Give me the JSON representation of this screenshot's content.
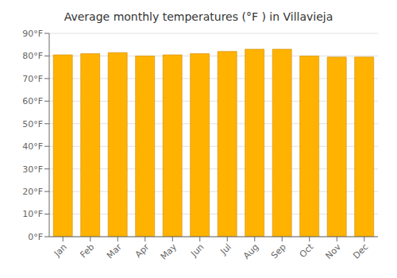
{
  "chart_data": {
    "type": "bar",
    "title": "Average monthly temperatures (°F ) in Villavieja",
    "categories": [
      "Jan",
      "Feb",
      "Mar",
      "Apr",
      "May",
      "Jun",
      "Jul",
      "Aug",
      "Sep",
      "Oct",
      "Nov",
      "Dec"
    ],
    "values": [
      80.5,
      81.0,
      81.5,
      80.0,
      80.5,
      81.0,
      82.0,
      83.0,
      83.0,
      80.0,
      79.5,
      79.5
    ],
    "color": "#FFB300",
    "ylim": [
      0,
      90
    ],
    "yticks": [
      {
        "value": 0,
        "label": "0°F"
      },
      {
        "value": 10,
        "label": "10°F"
      },
      {
        "value": 20,
        "label": "20°F"
      },
      {
        "value": 30,
        "label": "30°F"
      },
      {
        "value": 40,
        "label": "40°F"
      },
      {
        "value": 50,
        "label": "50°F"
      },
      {
        "value": 60,
        "label": "60°F"
      },
      {
        "value": 70,
        "label": "70°F"
      },
      {
        "value": 80,
        "label": "80°F"
      },
      {
        "value": 90,
        "label": "90°F"
      }
    ],
    "grid": true
  }
}
